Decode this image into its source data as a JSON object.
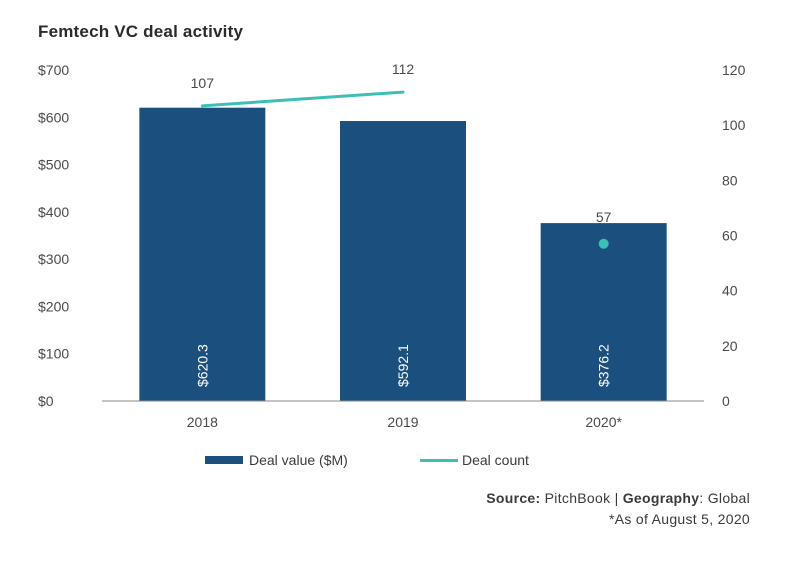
{
  "colors": {
    "bar": "#1b4f7d",
    "line": "#3cc0b4",
    "axis": "#8a8a8a"
  },
  "source": {
    "source_label": "Source:",
    "source_value": " PitchBook | ",
    "geo_label": "Geography",
    "geo_value": ": Global",
    "footnote": "*As of August 5, 2020"
  },
  "chart_data": {
    "type": "bar",
    "title": "Femtech VC deal activity",
    "categories": [
      "2018",
      "2019",
      "2020*"
    ],
    "y_left": {
      "ylim": [
        0,
        700
      ],
      "ticks": [
        "$0",
        "$100",
        "$200",
        "$300",
        "$400",
        "$500",
        "$600",
        "$700"
      ],
      "tick_values": [
        0,
        100,
        200,
        300,
        400,
        500,
        600,
        700
      ]
    },
    "y_right": {
      "ylim": [
        0,
        120
      ],
      "ticks": [
        "0",
        "20",
        "40",
        "60",
        "80",
        "100",
        "120"
      ],
      "tick_values": [
        0,
        20,
        40,
        60,
        80,
        100,
        120
      ]
    },
    "series": [
      {
        "name": "Deal value ($M)",
        "type": "bar",
        "axis": "left",
        "values": [
          620.3,
          592.1,
          376.2
        ],
        "labels": [
          "$620.3",
          "$592.1",
          "$376.2"
        ]
      },
      {
        "name": "Deal count",
        "type": "line",
        "axis": "right",
        "values": [
          107,
          112,
          57
        ],
        "labels": [
          "107",
          "112",
          "57"
        ],
        "segments": [
          [
            0,
            1
          ]
        ],
        "markers": [
          2
        ]
      }
    ],
    "legend": [
      "Deal value ($M)",
      "Deal count"
    ],
    "legend_position": "bottom"
  }
}
